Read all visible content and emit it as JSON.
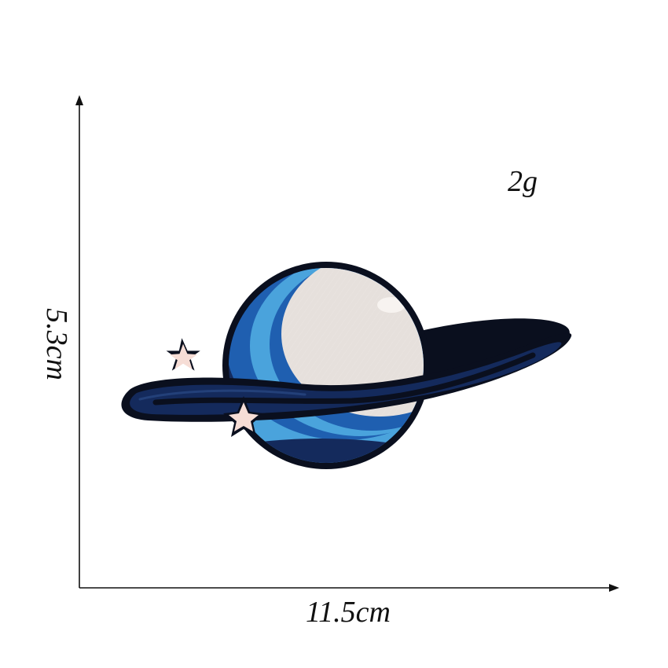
{
  "measurements": {
    "weight": "2g",
    "width": "11.5cm",
    "height": "5.3cm"
  },
  "patch": {
    "icon": "planet-patch-icon",
    "colors": {
      "outline": "#0a0f1e",
      "ring_navy": "#142a5c",
      "band_blue": "#1f5fb0",
      "band_light": "#4aa3dc",
      "planet_light": "#e6e0dc",
      "star": "#f6ddd6"
    }
  }
}
